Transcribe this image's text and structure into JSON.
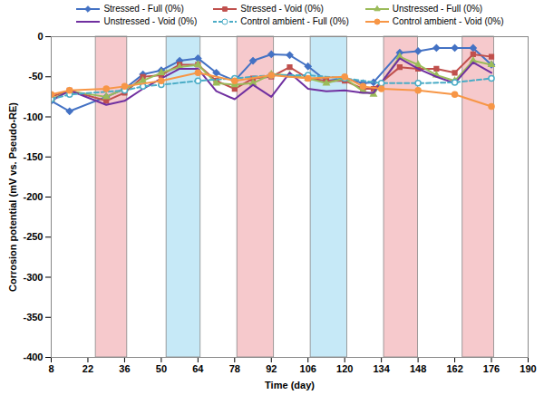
{
  "chart_data": {
    "type": "line",
    "x_label": "Time (day)",
    "y_label": "Corrosion potential (mV vs. Pseudo-RE)",
    "xlim": [
      8,
      190
    ],
    "xticks": [
      8,
      22,
      36,
      50,
      64,
      78,
      92,
      106,
      120,
      134,
      148,
      162,
      176,
      190
    ],
    "ylim": [
      -400,
      0
    ],
    "yticks": [
      -400,
      -350,
      -300,
      -250,
      -200,
      -150,
      -100,
      -50,
      0
    ],
    "grid": false,
    "legend": "top",
    "shaded_periods": [
      {
        "start": 25,
        "end": 37,
        "color": "#f6c9cc"
      },
      {
        "start": 52,
        "end": 65,
        "color": "#c6e9f7"
      },
      {
        "start": 79,
        "end": 93,
        "color": "#f6c9cc"
      },
      {
        "start": 107,
        "end": 121,
        "color": "#c6e9f7"
      },
      {
        "start": 135,
        "end": 148,
        "color": "#f6c9cc"
      },
      {
        "start": 165,
        "end": 177,
        "color": "#f6c9cc"
      }
    ],
    "series": [
      {
        "name": "Stressed - Full (0%)",
        "color": "#4472c4",
        "marker": "diamond",
        "line_style": "solid",
        "x": [
          8,
          15,
          29,
          36,
          43,
          50,
          57,
          64,
          71,
          78,
          85,
          92,
          99,
          106,
          113,
          120,
          127,
          131,
          141,
          148,
          155,
          162,
          169,
          176
        ],
        "values": [
          -80,
          -93,
          -75,
          -65,
          -47,
          -42,
          -30,
          -27,
          -45,
          -55,
          -30,
          -22,
          -23,
          -37,
          -55,
          -52,
          -58,
          -57,
          -20,
          -18,
          -14,
          -14,
          -14,
          -35
        ]
      },
      {
        "name": "Stressed - Void (0%)",
        "color": "#c0504d",
        "marker": "square",
        "line_style": "solid",
        "x": [
          8,
          15,
          29,
          36,
          43,
          50,
          57,
          64,
          71,
          78,
          85,
          92,
          99,
          106,
          113,
          120,
          127,
          131,
          141,
          148,
          155,
          162,
          169,
          176
        ],
        "values": [
          -75,
          -67,
          -80,
          -70,
          -50,
          -48,
          -35,
          -35,
          -55,
          -65,
          -52,
          -50,
          -38,
          -52,
          -55,
          -55,
          -65,
          -65,
          -38,
          -40,
          -40,
          -45,
          -22,
          -25
        ]
      },
      {
        "name": "Unstressed - Full (0%)",
        "color": "#9bbb59",
        "marker": "triangle",
        "line_style": "solid",
        "x": [
          8,
          15,
          29,
          36,
          43,
          50,
          57,
          64,
          71,
          78,
          85,
          92,
          99,
          106,
          113,
          120,
          127,
          131,
          141,
          148,
          155,
          162,
          169,
          176
        ],
        "values": [
          -78,
          -68,
          -75,
          -65,
          -55,
          -45,
          -38,
          -35,
          -58,
          -60,
          -58,
          -47,
          -48,
          -52,
          -58,
          -52,
          -68,
          -72,
          -25,
          -35,
          -48,
          -55,
          -30,
          -35
        ]
      },
      {
        "name": "Unstressed - Void (0%)",
        "color": "#7030a0",
        "marker": "none",
        "line_style": "solid",
        "x": [
          8,
          15,
          29,
          36,
          43,
          50,
          57,
          64,
          71,
          78,
          85,
          92,
          99,
          106,
          113,
          120,
          127,
          131,
          141,
          148,
          155,
          162,
          169,
          176
        ],
        "values": [
          -80,
          -67,
          -85,
          -80,
          -65,
          -52,
          -40,
          -40,
          -68,
          -78,
          -60,
          -75,
          -45,
          -65,
          -68,
          -67,
          -70,
          -70,
          -27,
          -40,
          -50,
          -58,
          -32,
          -45
        ]
      },
      {
        "name": "Control ambient - Full (0%)",
        "color": "#4bacc6",
        "marker": "open_circle",
        "line_style": "dashed",
        "x": [
          8,
          15,
          36,
          43,
          50,
          64,
          78,
          92,
          106,
          120,
          134,
          148,
          162,
          176
        ],
        "values": [
          -78,
          -72,
          -67,
          -62,
          -60,
          -55,
          -52,
          -48,
          -48,
          -52,
          -58,
          -58,
          -57,
          -52
        ]
      },
      {
        "name": "Control ambient - Void (0%)",
        "color": "#f79646",
        "marker": "circle",
        "line_style": "solid",
        "x": [
          8,
          15,
          29,
          36,
          50,
          64,
          78,
          92,
          106,
          120,
          127,
          134,
          148,
          162,
          176
        ],
        "values": [
          -72,
          -67,
          -65,
          -62,
          -55,
          -45,
          -55,
          -48,
          -52,
          -50,
          -62,
          -65,
          -67,
          -72,
          -87
        ]
      }
    ]
  }
}
